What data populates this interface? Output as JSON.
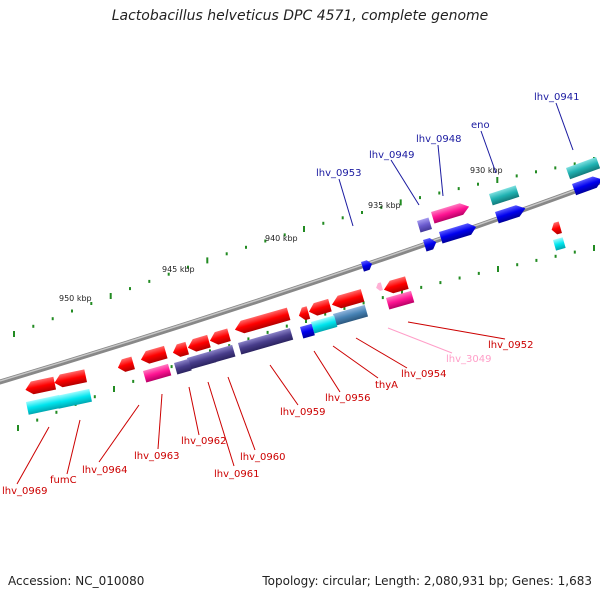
{
  "title": "Lactobacillus helveticus DPC 4571, complete genome",
  "footer": {
    "accession": "Accession: NC_010080",
    "summary": "Topology: circular; Length: 2,080,931 bp; Genes: 1,683"
  },
  "ticks": [
    "930 kbp",
    "935 kbp",
    "940 kbp",
    "945 kbp",
    "950 kbp"
  ],
  "labels": {
    "lhv_0941": "lhv_0941",
    "eno": "eno",
    "lhv_0948": "lhv_0948",
    "lhv_0949": "lhv_0949",
    "lhv_0953": "lhv_0953",
    "lhv_0952": "lhv_0952",
    "lhv_3049": "lhv_3049",
    "lhv_0954": "lhv_0954",
    "thyA": "thyA",
    "lhv_0956": "lhv_0956",
    "lhv_0959": "lhv_0959",
    "lhv_0960": "lhv_0960",
    "lhv_0961": "lhv_0961",
    "lhv_0962": "lhv_0962",
    "lhv_0963": "lhv_0963",
    "lhv_0964": "lhv_0964",
    "fumC": "fumC",
    "lhv_0969": "lhv_0969"
  },
  "colors": {
    "backbone": "#8a8a8a",
    "forward_gene": "#ff0000",
    "reverse_gene": "#0000ee",
    "rna": "#ff1493",
    "cds_blue": "#00ced1",
    "cds_purple": "#483d8b",
    "tick_green": "#228b22",
    "label_red": "#cc0000",
    "label_blue": "#1a1aa0",
    "label_pink": "#ff9ec8"
  }
}
